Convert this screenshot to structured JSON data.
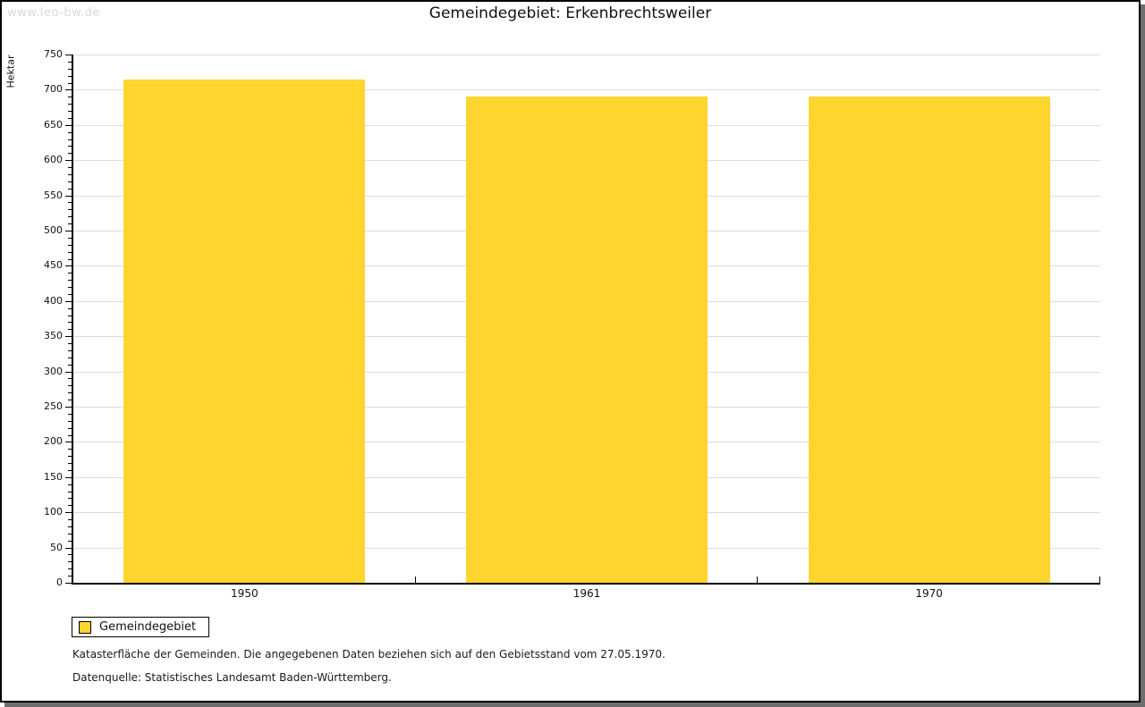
{
  "watermark": "www.leo-bw.de",
  "title": "Gemeindegebiet: Erkenbrechtsweiler",
  "chart_data": {
    "type": "bar",
    "title": "Gemeindegebiet: Erkenbrechtsweiler",
    "categories": [
      "1950",
      "1961",
      "1970"
    ],
    "series": [
      {
        "name": "Gemeindegebiet",
        "values": [
          715,
          691,
          691
        ]
      }
    ],
    "xlabel": "",
    "ylabel": "Hektar",
    "ylim": [
      0,
      750
    ],
    "ytick_step": 50,
    "minor_tick_step": 10,
    "grid": true,
    "bar_color": "#fdd52e",
    "gridline_color": "#dddddd",
    "legend_position": "bottom-left"
  },
  "legend": {
    "items": [
      {
        "label": "Gemeindegebiet",
        "color": "#fdd52e"
      }
    ]
  },
  "footer": {
    "line1": "Katasterfläche der Gemeinden. Die angegebenen Daten beziehen sich auf den Gebietsstand vom 27.05.1970.",
    "line2": "Datenquelle: Statistisches Landesamt Baden-Württemberg."
  }
}
